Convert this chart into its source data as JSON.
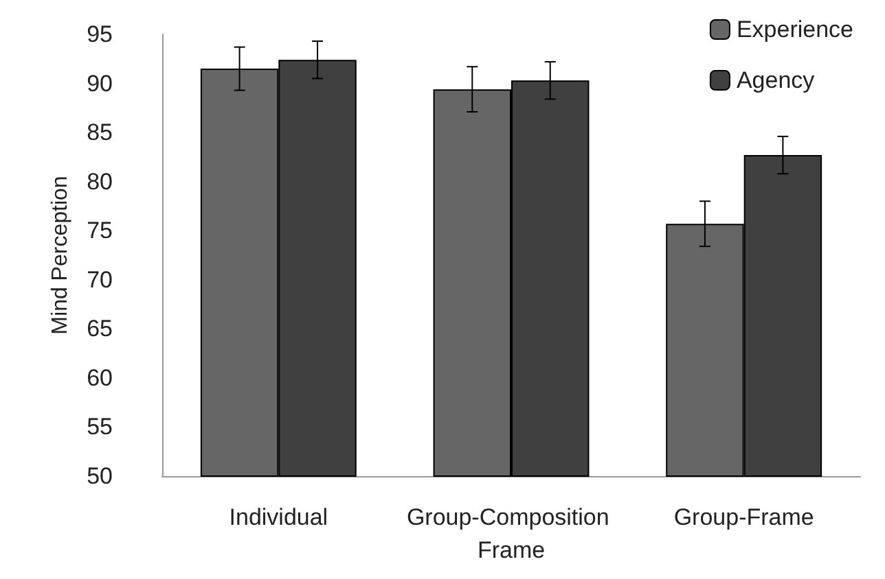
{
  "chart_data": {
    "type": "bar",
    "ylabel": "Mind Perception",
    "categories": [
      "Individual",
      "Group-Composition Frame",
      "Group-Frame"
    ],
    "series": [
      {
        "name": "Experience",
        "color": "#666666",
        "values": [
          91.5,
          89.4,
          75.7
        ],
        "errors": [
          2.2,
          2.3,
          2.3
        ]
      },
      {
        "name": "Agency",
        "color": "#404040",
        "values": [
          92.4,
          90.3,
          82.7
        ],
        "errors": [
          1.9,
          1.9,
          1.9
        ]
      }
    ],
    "ylim": [
      50,
      95
    ],
    "yticks": [
      50,
      55,
      60,
      65,
      70,
      75,
      80,
      85,
      90,
      95
    ],
    "grid": false,
    "legend": "top right"
  }
}
